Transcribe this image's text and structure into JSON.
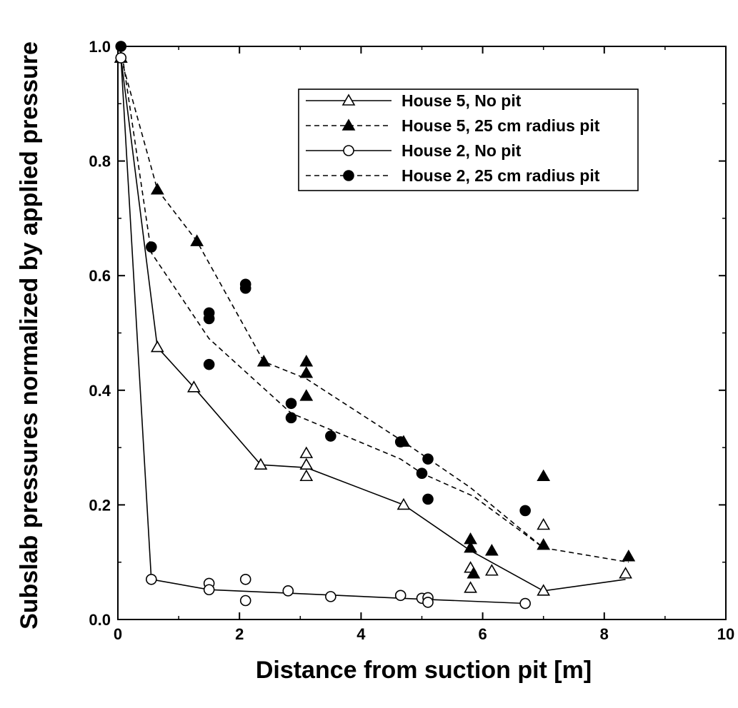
{
  "chart_data": {
    "type": "line",
    "title": "",
    "xlabel": "Distance from suction pit [m]",
    "ylabel": "Subslab pressures normalized by applied pressure",
    "xlim": [
      0,
      10
    ],
    "ylim": [
      0,
      1.0
    ],
    "xticks": [
      "0",
      "2",
      "4",
      "6",
      "8",
      "10"
    ],
    "yticks": [
      "0.0",
      "0.2",
      "0.4",
      "0.6",
      "0.8",
      "1.0"
    ],
    "grid": false,
    "legend_position": "top-right",
    "series": [
      {
        "name": "House 5, No pit",
        "marker": "open-triangle",
        "line_style": "solid",
        "points": [
          [
            0.05,
            0.98
          ],
          [
            0.65,
            0.475
          ],
          [
            1.25,
            0.405
          ],
          [
            2.35,
            0.27
          ],
          [
            3.1,
            0.29
          ],
          [
            3.1,
            0.27
          ],
          [
            3.1,
            0.25
          ],
          [
            4.7,
            0.2
          ],
          [
            5.8,
            0.09
          ],
          [
            5.8,
            0.055
          ],
          [
            6.15,
            0.085
          ],
          [
            7.0,
            0.165
          ],
          [
            7.0,
            0.05
          ],
          [
            8.35,
            0.08
          ]
        ],
        "line": [
          [
            0.05,
            0.98
          ],
          [
            0.65,
            0.475
          ],
          [
            1.25,
            0.405
          ],
          [
            2.35,
            0.27
          ],
          [
            3.1,
            0.265
          ],
          [
            4.7,
            0.2
          ],
          [
            5.8,
            0.12
          ],
          [
            7.0,
            0.05
          ],
          [
            8.35,
            0.07
          ]
        ]
      },
      {
        "name": "House 5, 25 cm radius pit",
        "marker": "filled-triangle",
        "line_style": "dashed",
        "points": [
          [
            0.05,
            0.98
          ],
          [
            0.65,
            0.75
          ],
          [
            1.3,
            0.66
          ],
          [
            2.4,
            0.45
          ],
          [
            3.1,
            0.45
          ],
          [
            3.1,
            0.43
          ],
          [
            3.1,
            0.39
          ],
          [
            4.7,
            0.31
          ],
          [
            5.8,
            0.14
          ],
          [
            5.8,
            0.125
          ],
          [
            5.85,
            0.08
          ],
          [
            6.15,
            0.12
          ],
          [
            7.0,
            0.25
          ],
          [
            7.0,
            0.13
          ],
          [
            8.4,
            0.11
          ]
        ],
        "line": [
          [
            0.05,
            0.98
          ],
          [
            0.65,
            0.75
          ],
          [
            1.3,
            0.66
          ],
          [
            2.4,
            0.45
          ],
          [
            3.1,
            0.42
          ],
          [
            4.7,
            0.31
          ],
          [
            5.8,
            0.23
          ],
          [
            7.0,
            0.125
          ],
          [
            8.4,
            0.1
          ]
        ]
      },
      {
        "name": "House 2, No pit",
        "marker": "open-circle",
        "line_style": "solid",
        "points": [
          [
            0.05,
            0.98
          ],
          [
            0.55,
            0.07
          ],
          [
            1.5,
            0.063
          ],
          [
            1.5,
            0.052
          ],
          [
            2.1,
            0.07
          ],
          [
            2.1,
            0.033
          ],
          [
            2.8,
            0.05
          ],
          [
            3.5,
            0.04
          ],
          [
            4.65,
            0.042
          ],
          [
            5.0,
            0.037
          ],
          [
            5.1,
            0.038
          ],
          [
            5.1,
            0.03
          ],
          [
            6.7,
            0.028
          ]
        ],
        "line": [
          [
            0.05,
            0.98
          ],
          [
            0.55,
            0.07
          ],
          [
            1.5,
            0.052
          ],
          [
            2.8,
            0.046
          ],
          [
            5.1,
            0.035
          ],
          [
            6.7,
            0.028
          ]
        ]
      },
      {
        "name": "House 2, 25 cm radius pit",
        "marker": "filled-circle",
        "line_style": "dashed",
        "points": [
          [
            0.05,
            1.0
          ],
          [
            0.55,
            0.65
          ],
          [
            1.5,
            0.535
          ],
          [
            1.5,
            0.525
          ],
          [
            1.5,
            0.445
          ],
          [
            2.1,
            0.585
          ],
          [
            2.1,
            0.578
          ],
          [
            2.85,
            0.377
          ],
          [
            2.85,
            0.352
          ],
          [
            3.5,
            0.32
          ],
          [
            4.65,
            0.31
          ],
          [
            5.0,
            0.255
          ],
          [
            5.1,
            0.28
          ],
          [
            5.1,
            0.21
          ],
          [
            6.7,
            0.19
          ]
        ],
        "line": [
          [
            0.05,
            1.0
          ],
          [
            0.55,
            0.64
          ],
          [
            1.5,
            0.49
          ],
          [
            2.85,
            0.36
          ],
          [
            4.65,
            0.28
          ],
          [
            5.0,
            0.255
          ],
          [
            5.85,
            0.215
          ],
          [
            7.0,
            0.125
          ]
        ]
      }
    ]
  }
}
